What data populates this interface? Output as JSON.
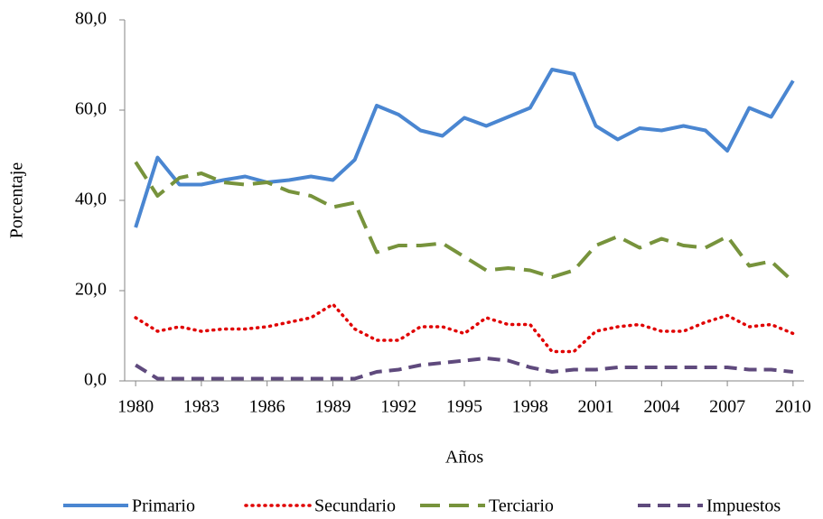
{
  "chart_data": {
    "type": "line",
    "x_label": "Años",
    "y_label": "Porcentaje",
    "x": [
      1980,
      1981,
      1982,
      1983,
      1984,
      1985,
      1986,
      1987,
      1988,
      1989,
      1990,
      1991,
      1992,
      1993,
      1994,
      1995,
      1996,
      1997,
      1998,
      1999,
      2000,
      2001,
      2002,
      2003,
      2004,
      2005,
      2006,
      2007,
      2008,
      2009,
      2010
    ],
    "xlim": [
      1979.5,
      2010.5
    ],
    "xticks": [
      1980,
      1983,
      1986,
      1989,
      1992,
      1995,
      1998,
      2001,
      2004,
      2007,
      2010
    ],
    "ylim": [
      0,
      80
    ],
    "yticks": [
      {
        "value": 0,
        "label": "0,0"
      },
      {
        "value": 20,
        "label": "20,0"
      },
      {
        "value": 40,
        "label": "40,0"
      },
      {
        "value": 60,
        "label": "60,0"
      },
      {
        "value": 80,
        "label": "80,0"
      }
    ],
    "grid": false,
    "legend": "bottom",
    "series": [
      {
        "name": "Primario",
        "color": "#4a86d1",
        "style": "solid",
        "values": [
          34,
          49.5,
          43.5,
          43.5,
          44.5,
          45.3,
          44,
          44.5,
          45.3,
          44.5,
          49,
          61,
          59,
          55.5,
          54.3,
          58.3,
          56.5,
          58.5,
          60.5,
          69,
          68,
          56.5,
          53.5,
          56,
          55.5,
          56.5,
          55.5,
          51,
          60.5,
          58.5,
          66.5
        ]
      },
      {
        "name": "Secundario",
        "color": "#e00000",
        "style": "dotted",
        "values": [
          14,
          11,
          12,
          11,
          11.5,
          11.5,
          12,
          13,
          14,
          17,
          11.5,
          9,
          9,
          12,
          12,
          10.5,
          14,
          12.5,
          12.5,
          6.5,
          6.5,
          11,
          12,
          12.5,
          11,
          11,
          13,
          14.5,
          12,
          12.5,
          10.5
        ]
      },
      {
        "name": "Terciario",
        "color": "#77933c",
        "style": "dashed",
        "values": [
          48.5,
          41,
          45,
          46,
          44,
          43.5,
          44,
          42,
          41,
          38.5,
          39.5,
          28.5,
          30,
          30,
          30.5,
          27.5,
          24.5,
          25,
          24.5,
          23,
          24.5,
          30,
          32,
          29.5,
          31.5,
          30,
          29.5,
          32,
          25.5,
          26.5,
          22
        ]
      },
      {
        "name": "Impuestos",
        "color": "#5f4a7d",
        "style": "shortdash",
        "values": [
          3.5,
          0.5,
          0.5,
          0.5,
          0.5,
          0.5,
          0.5,
          0.5,
          0.5,
          0.5,
          0.5,
          2,
          2.5,
          3.5,
          4,
          4.5,
          5,
          4.5,
          3,
          2,
          2.5,
          2.5,
          3,
          3,
          3,
          3,
          3,
          3,
          2.5,
          2.5,
          2
        ]
      }
    ]
  }
}
